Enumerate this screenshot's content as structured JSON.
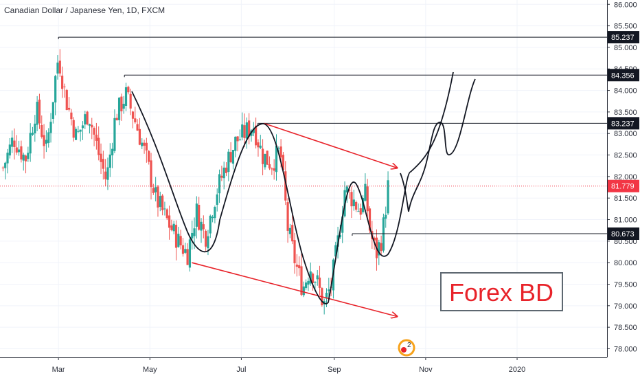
{
  "chart_data": {
    "type": "candlestick",
    "title": "Canadian Dollar / Japanese Yen, 1D, FXCM",
    "ylim": [
      77.8,
      86.1
    ],
    "y_ticks": [
      "86.000",
      "85.500",
      "85.000",
      "84.500",
      "84.000",
      "83.500",
      "83.000",
      "82.500",
      "82.000",
      "81.500",
      "81.000",
      "80.500",
      "80.000",
      "79.500",
      "79.000",
      "78.500",
      "78.000"
    ],
    "x_ticks": [
      {
        "label": "Mar",
        "day": 0
      },
      {
        "label": "May",
        "day": 61
      },
      {
        "label": "Jul",
        "day": 122
      },
      {
        "label": "Sep",
        "day": 184
      },
      {
        "label": "Nov",
        "day": 245
      },
      {
        "label": "2020",
        "day": 306
      }
    ],
    "x_day_range": [
      -39,
      366
    ],
    "current_price": {
      "label": "81.779",
      "value": 81.779,
      "color": "#f23645"
    },
    "levels": [
      {
        "label": "85.237",
        "value": 85.237,
        "from_day": 0
      },
      {
        "label": "84.356",
        "value": 84.356,
        "from_day": 44
      },
      {
        "label": "83.237",
        "value": 83.237,
        "from_day": 133
      },
      {
        "label": "80.673",
        "value": 80.673,
        "from_day": 196
      }
    ],
    "candles_anchors": [
      {
        "day": -37,
        "price": 82.2
      },
      {
        "day": -30,
        "price": 82.9
      },
      {
        "day": -22,
        "price": 82.4
      },
      {
        "day": -15,
        "price": 83.6
      },
      {
        "day": -8,
        "price": 82.6
      },
      {
        "day": -2,
        "price": 84.3
      },
      {
        "day": 0,
        "price": 84.8
      },
      {
        "day": 5,
        "price": 83.8
      },
      {
        "day": 12,
        "price": 82.9
      },
      {
        "day": 20,
        "price": 83.5
      },
      {
        "day": 27,
        "price": 82.5
      },
      {
        "day": 32,
        "price": 81.9
      },
      {
        "day": 38,
        "price": 83.4
      },
      {
        "day": 45,
        "price": 83.9
      },
      {
        "day": 52,
        "price": 83.2
      },
      {
        "day": 58,
        "price": 82.5
      },
      {
        "day": 65,
        "price": 81.5
      },
      {
        "day": 72,
        "price": 81.0
      },
      {
        "day": 80,
        "price": 80.5
      },
      {
        "day": 86,
        "price": 80.2
      },
      {
        "day": 92,
        "price": 81.2
      },
      {
        "day": 98,
        "price": 80.6
      },
      {
        "day": 105,
        "price": 81.6
      },
      {
        "day": 112,
        "price": 82.3
      },
      {
        "day": 118,
        "price": 82.8
      },
      {
        "day": 124,
        "price": 83.0
      },
      {
        "day": 130,
        "price": 83.2
      },
      {
        "day": 136,
        "price": 82.5
      },
      {
        "day": 142,
        "price": 82.3
      },
      {
        "day": 148,
        "price": 82.6
      },
      {
        "day": 153,
        "price": 80.8
      },
      {
        "day": 158,
        "price": 80.0
      },
      {
        "day": 163,
        "price": 79.4
      },
      {
        "day": 168,
        "price": 79.9
      },
      {
        "day": 173,
        "price": 79.5
      },
      {
        "day": 177,
        "price": 79.0
      },
      {
        "day": 182,
        "price": 79.5
      },
      {
        "day": 187,
        "price": 80.6
      },
      {
        "day": 191,
        "price": 81.7
      },
      {
        "day": 196,
        "price": 81.5
      },
      {
        "day": 201,
        "price": 81.2
      },
      {
        "day": 205,
        "price": 81.6
      },
      {
        "day": 208,
        "price": 80.7
      },
      {
        "day": 212,
        "price": 80.2
      },
      {
        "day": 216,
        "price": 80.6
      },
      {
        "day": 221,
        "price": 82.1
      }
    ],
    "red_arrows": [
      {
        "from": {
          "day": 137,
          "price": 83.237
        },
        "to": {
          "day": 226,
          "price": 82.2
        }
      },
      {
        "from": {
          "day": 89,
          "price": 80.0
        },
        "to": {
          "day": 226,
          "price": 78.75
        }
      }
    ],
    "watermark": {
      "text": "Forex BD",
      "color": "#e8232a"
    },
    "colors": {
      "up": "#26a69a",
      "down": "#ef5350",
      "grid": "#f0f3fa",
      "axis": "#2a2e39",
      "level": "#131722",
      "arrow": "#e8232a",
      "path": "#131722"
    }
  }
}
